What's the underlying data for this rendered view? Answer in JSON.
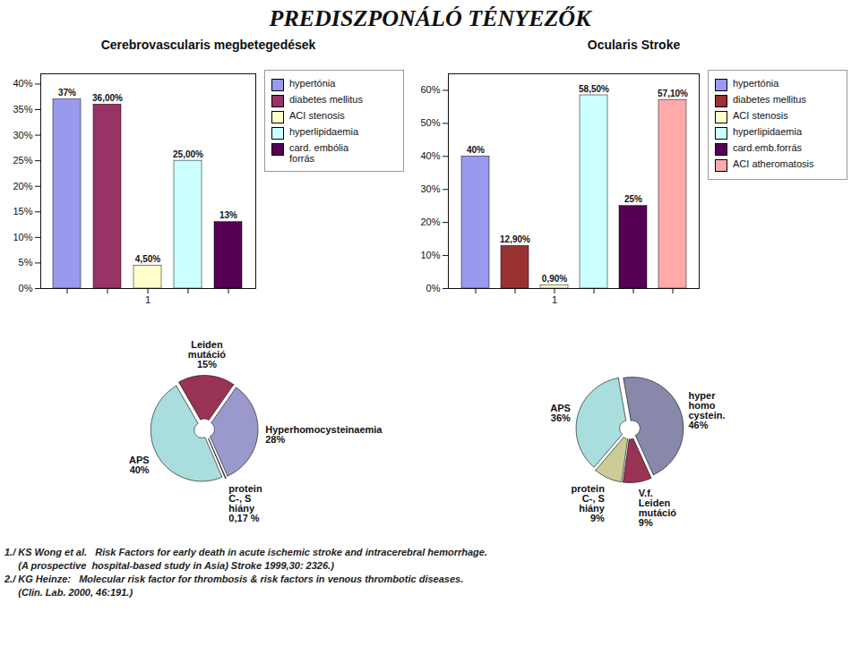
{
  "title": "PREDISZPONÁLÓ TÉNYEZŐK",
  "annotations": [
    "1./ KS Wong et al.   Risk Factors for early death in acute ischemic stroke and intracerebral hemorrhage.",
    "     (A prospective  hospital-based study in Asia) Stroke 1999,30: 2326.)",
    "2./ KG Heinze:   Molecular risk factor for thrombosis & risk factors in venous thrombotic diseases.",
    "     (Clin. Lab. 2000, 46:191.)"
  ],
  "chart_data": [
    {
      "type": "bar",
      "title": "Cerebrovascularis megbetegedések",
      "categories": [
        null,
        null,
        "1",
        null,
        null
      ],
      "series": [
        {
          "name": "hypertónia",
          "color": "#9999ee",
          "values": [
            37,
            null,
            null,
            null,
            null
          ],
          "value_labels": [
            "37%",
            null,
            null,
            null,
            null
          ]
        },
        {
          "name": "diabetes mellitus",
          "color": "#993366",
          "values": [
            null,
            36,
            null,
            null,
            null
          ],
          "value_labels": [
            null,
            "36,00%",
            null,
            null,
            null
          ]
        },
        {
          "name": "ACI stenosis",
          "color": "#ffffcc",
          "values": [
            null,
            null,
            4.5,
            null,
            null
          ],
          "value_labels": [
            null,
            null,
            "4,50%",
            null,
            null
          ]
        },
        {
          "name": "hyperlipidaemia",
          "color": "#ccffff",
          "values": [
            null,
            null,
            null,
            25,
            null
          ],
          "value_labels": [
            null,
            null,
            null,
            "25,00%",
            null
          ]
        },
        {
          "name": "card. embólia\nforrás",
          "color": "#550055",
          "values": [
            null,
            null,
            null,
            null,
            13
          ],
          "value_labels": [
            null,
            null,
            null,
            null,
            "13%"
          ]
        }
      ],
      "ylim": [
        0,
        42
      ],
      "yticks": [
        {
          "value": 0,
          "label": "0%"
        },
        {
          "value": 5,
          "label": "5%"
        },
        {
          "value": 10,
          "label": "10%"
        },
        {
          "value": 15,
          "label": "15%"
        },
        {
          "value": 20,
          "label": "20%"
        },
        {
          "value": 25,
          "label": "25%"
        },
        {
          "value": 30,
          "label": "30%"
        },
        {
          "value": 35,
          "label": "35%"
        },
        {
          "value": 40,
          "label": "40%"
        }
      ],
      "grid": false,
      "legend": "right",
      "data_labels": true
    },
    {
      "type": "bar",
      "title": "Ocularis Stroke",
      "categories": [
        null,
        null,
        "1",
        null,
        null,
        null
      ],
      "series": [
        {
          "name": "hypertónia",
          "color": "#9999ee",
          "values": [
            40,
            null,
            null,
            null,
            null,
            null
          ],
          "value_labels": [
            "40%",
            null,
            null,
            null,
            null,
            null
          ]
        },
        {
          "name": "diabetes mellitus",
          "color": "#993333",
          "values": [
            null,
            12.9,
            null,
            null,
            null,
            null
          ],
          "value_labels": [
            null,
            "12,90%",
            null,
            null,
            null,
            null
          ]
        },
        {
          "name": "ACI stenosis",
          "color": "#ffffcc",
          "values": [
            null,
            null,
            0.9,
            null,
            null,
            null
          ],
          "value_labels": [
            null,
            null,
            "0,90%",
            null,
            null,
            null
          ]
        },
        {
          "name": "hyperlipidaemia",
          "color": "#ccffff",
          "values": [
            null,
            null,
            null,
            58.5,
            null,
            null
          ],
          "value_labels": [
            null,
            null,
            null,
            "58,50%",
            null,
            null
          ]
        },
        {
          "name": "card.emb.forrás",
          "color": "#550055",
          "values": [
            null,
            null,
            null,
            null,
            25,
            null
          ],
          "value_labels": [
            null,
            null,
            null,
            null,
            "25%",
            null
          ]
        },
        {
          "name": "ACI atheromatosis",
          "color": "#ffaaaa",
          "values": [
            null,
            null,
            null,
            null,
            null,
            57.1
          ],
          "value_labels": [
            null,
            null,
            null,
            null,
            null,
            "57,10%"
          ]
        }
      ],
      "ylim": [
        0,
        65
      ],
      "yticks": [
        {
          "value": 0,
          "label": "0%"
        },
        {
          "value": 10,
          "label": "10%"
        },
        {
          "value": 20,
          "label": "20%"
        },
        {
          "value": 30,
          "label": "30%"
        },
        {
          "value": 40,
          "label": "40%"
        },
        {
          "value": 50,
          "label": "50%"
        },
        {
          "value": 60,
          "label": "60%"
        }
      ],
      "grid": false,
      "legend": "right",
      "data_labels": true
    },
    {
      "type": "pie",
      "categories": [
        "APS",
        "protein\nC-, S\nhiány",
        "Hyperhomocysteinaemia",
        "Leiden\nmutáció"
      ],
      "values": [
        40,
        0.17,
        28,
        15
      ],
      "value_labels": [
        "40%",
        "0,17 %",
        "28%",
        "15%"
      ],
      "colors": [
        "#aadddd",
        "#885555",
        "#9999cc",
        "#993355"
      ],
      "data_labels": true
    },
    {
      "type": "pie",
      "categories": [
        "APS",
        "protein\nC-, S\nhiány",
        "V.f.\nLeiden\nmutáció",
        "hyper\nhomo\ncystein."
      ],
      "values": [
        36,
        9,
        9,
        46
      ],
      "value_labels": [
        "36%",
        "9%",
        "9%",
        "46%"
      ],
      "colors": [
        "#aadddd",
        "#cccc99",
        "#993355",
        "#8888aa"
      ],
      "data_labels": true
    }
  ]
}
